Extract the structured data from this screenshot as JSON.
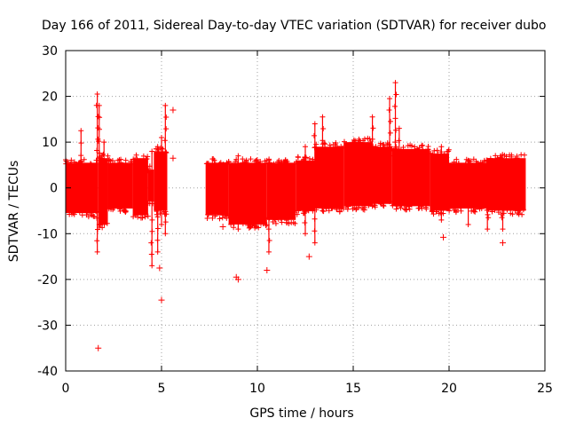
{
  "chart_data": {
    "type": "scatter",
    "title": "Day 166 of 2011, Sidereal Day-to-day VTEC variation (SDTVAR) for receiver dubo",
    "xlabel": "GPS time / hours",
    "ylabel": "SDTVAR / TECUs",
    "xlim": [
      0,
      25
    ],
    "ylim": [
      -40,
      30
    ],
    "xticks": [
      0,
      5,
      10,
      15,
      20,
      25
    ],
    "yticks": [
      -40,
      -30,
      -20,
      -10,
      0,
      10,
      20,
      30
    ],
    "grid": true,
    "marker": "+",
    "color": "#ff0000",
    "series": [
      {
        "name": "SDTVAR",
        "bands": [
          {
            "x0": 0.0,
            "x1": 1.7,
            "lo": -5.5,
            "hi": 5.5
          },
          {
            "x0": 1.7,
            "x1": 2.2,
            "lo": -8,
            "hi": 6.5
          },
          {
            "x0": 2.2,
            "x1": 3.5,
            "lo": -4.5,
            "hi": 5.5
          },
          {
            "x0": 3.5,
            "x1": 4.3,
            "lo": -6,
            "hi": 6.5
          },
          {
            "x0": 4.3,
            "x1": 4.6,
            "lo": -3,
            "hi": 4
          },
          {
            "x0": 4.6,
            "x1": 5.3,
            "lo": -5,
            "hi": 8
          },
          {
            "x0": 7.3,
            "x1": 8.5,
            "lo": -6,
            "hi": 5.5
          },
          {
            "x0": 8.5,
            "x1": 10.5,
            "lo": -8,
            "hi": 5.5
          },
          {
            "x0": 10.5,
            "x1": 12.0,
            "lo": -7,
            "hi": 5.5
          },
          {
            "x0": 12.0,
            "x1": 13.0,
            "lo": -5,
            "hi": 6
          },
          {
            "x0": 13.0,
            "x1": 14.5,
            "lo": -4.5,
            "hi": 9
          },
          {
            "x0": 14.5,
            "x1": 16.0,
            "lo": -4,
            "hi": 10
          },
          {
            "x0": 16.0,
            "x1": 17.0,
            "lo": -3.5,
            "hi": 9
          },
          {
            "x0": 17.0,
            "x1": 19.0,
            "lo": -4,
            "hi": 8.5
          },
          {
            "x0": 19.0,
            "x1": 20.0,
            "lo": -5,
            "hi": 7.5
          },
          {
            "x0": 20.0,
            "x1": 22.0,
            "lo": -4.5,
            "hi": 5.5
          },
          {
            "x0": 22.0,
            "x1": 24.0,
            "lo": -5,
            "hi": 6.5
          }
        ],
        "spikes": [
          {
            "x": 0.8,
            "lo": -1,
            "hi": 12.5
          },
          {
            "x": 1.65,
            "lo": -14,
            "hi": 20.5
          },
          {
            "x": 1.75,
            "lo": -8,
            "hi": 18
          },
          {
            "x": 2.0,
            "lo": -6,
            "hi": 10
          },
          {
            "x": 4.5,
            "lo": -17,
            "hi": 8
          },
          {
            "x": 4.8,
            "lo": -14,
            "hi": 9
          },
          {
            "x": 5.0,
            "lo": -8,
            "hi": 11
          },
          {
            "x": 5.2,
            "lo": -10,
            "hi": 18
          },
          {
            "x": 9.0,
            "lo": -9,
            "hi": 7
          },
          {
            "x": 10.6,
            "lo": -14,
            "hi": 6
          },
          {
            "x": 12.5,
            "lo": -10,
            "hi": 9
          },
          {
            "x": 13.0,
            "lo": -12,
            "hi": 14
          },
          {
            "x": 13.4,
            "lo": -5,
            "hi": 15.5
          },
          {
            "x": 16.0,
            "lo": -4,
            "hi": 15.5
          },
          {
            "x": 16.9,
            "lo": -3,
            "hi": 19.5
          },
          {
            "x": 17.2,
            "lo": -3,
            "hi": 23
          },
          {
            "x": 17.4,
            "lo": -3,
            "hi": 13
          },
          {
            "x": 19.6,
            "lo": -7,
            "hi": 9
          },
          {
            "x": 21.0,
            "lo": -8,
            "hi": 6
          },
          {
            "x": 22.0,
            "lo": -9,
            "hi": 6
          },
          {
            "x": 22.8,
            "lo": -9,
            "hi": 6
          }
        ],
        "outliers": [
          {
            "x": 1.7,
            "y": -35
          },
          {
            "x": 5.0,
            "y": -24.5
          },
          {
            "x": 4.9,
            "y": -17.5
          },
          {
            "x": 5.6,
            "y": 17
          },
          {
            "x": 5.6,
            "y": 6.5
          },
          {
            "x": 8.2,
            "y": -8.5
          },
          {
            "x": 8.9,
            "y": -19.5
          },
          {
            "x": 9.0,
            "y": -20
          },
          {
            "x": 10.5,
            "y": -18
          },
          {
            "x": 12.7,
            "y": -15
          },
          {
            "x": 19.7,
            "y": -10.8
          },
          {
            "x": 22.8,
            "y": -12
          }
        ]
      }
    ]
  }
}
